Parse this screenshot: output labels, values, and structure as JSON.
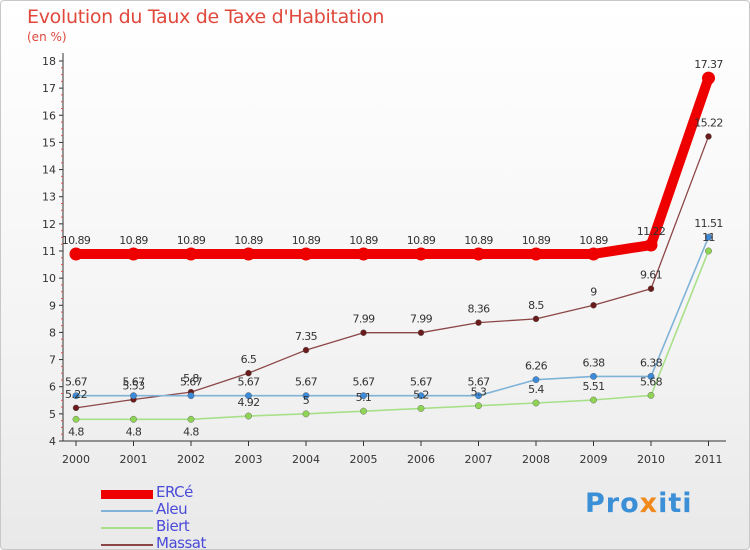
{
  "header": {
    "title": "Evolution du Taux de Taxe d'Habitation",
    "unit": "(en %)"
  },
  "logo": {
    "text_start": "Pro",
    "text_x": "x",
    "text_end": "iti"
  },
  "colors": {
    "title": "#e0483c",
    "legend_text": "#4a4ad8",
    "axis": "#333333"
  },
  "chart_data": {
    "type": "line",
    "x": [
      "2000",
      "2001",
      "2002",
      "2003",
      "2004",
      "2005",
      "2006",
      "2007",
      "2008",
      "2009",
      "2010",
      "2011"
    ],
    "ylim": [
      4,
      18
    ],
    "yticks": [
      "4",
      "5",
      "6",
      "7",
      "8",
      "9",
      "10",
      "11",
      "12",
      "13",
      "14",
      "15",
      "16",
      "17",
      "18"
    ],
    "grid": false,
    "legend_position": "bottom-left",
    "series": [
      {
        "name": "ERCé",
        "color": "#ee0000",
        "values": [
          10.89,
          10.89,
          10.89,
          10.89,
          10.89,
          10.89,
          10.89,
          10.89,
          10.89,
          10.89,
          11.22,
          17.37
        ],
        "labels": [
          "10.89",
          "10.89",
          "10.89",
          "10.89",
          "10.89",
          "10.89",
          "10.89",
          "10.89",
          "10.89",
          "10.89",
          "11.22",
          "17.37"
        ]
      },
      {
        "name": "Aleu",
        "color": "#7fb3d8",
        "point_color": "#3c8ad8",
        "values": [
          5.67,
          5.67,
          5.67,
          5.67,
          5.67,
          5.67,
          5.67,
          5.67,
          6.26,
          6.38,
          6.38,
          11.51
        ],
        "labels": [
          "5.67",
          "5.67",
          "5.67",
          "5.67",
          "5.67",
          "5.67",
          "5.67",
          "5.67",
          "6.26",
          "6.38",
          "6.38",
          "11.51"
        ]
      },
      {
        "name": "Biert",
        "color": "#a8e08a",
        "point_color": "#8fd455",
        "values": [
          4.8,
          4.8,
          4.8,
          4.92,
          5.0,
          5.1,
          5.2,
          5.3,
          5.4,
          5.51,
          5.68,
          11.0
        ],
        "labels": [
          "4.8",
          "4.8",
          "4.8",
          "4.92",
          "5",
          "5.1",
          "5.2",
          "5.3",
          "5.4",
          "5.51",
          "5.68",
          "11"
        ]
      },
      {
        "name": "Massat",
        "color": "#8c4646",
        "point_color": "#6a1c1c",
        "values": [
          5.22,
          5.53,
          5.8,
          6.5,
          7.35,
          7.99,
          7.99,
          8.36,
          8.5,
          9.0,
          9.61,
          15.22
        ],
        "labels": [
          "5.22",
          "5.53",
          "5.8",
          "6.5",
          "7.35",
          "7.99",
          "7.99",
          "8.36",
          "8.5",
          "9",
          "9.61",
          "15.22"
        ]
      }
    ]
  }
}
